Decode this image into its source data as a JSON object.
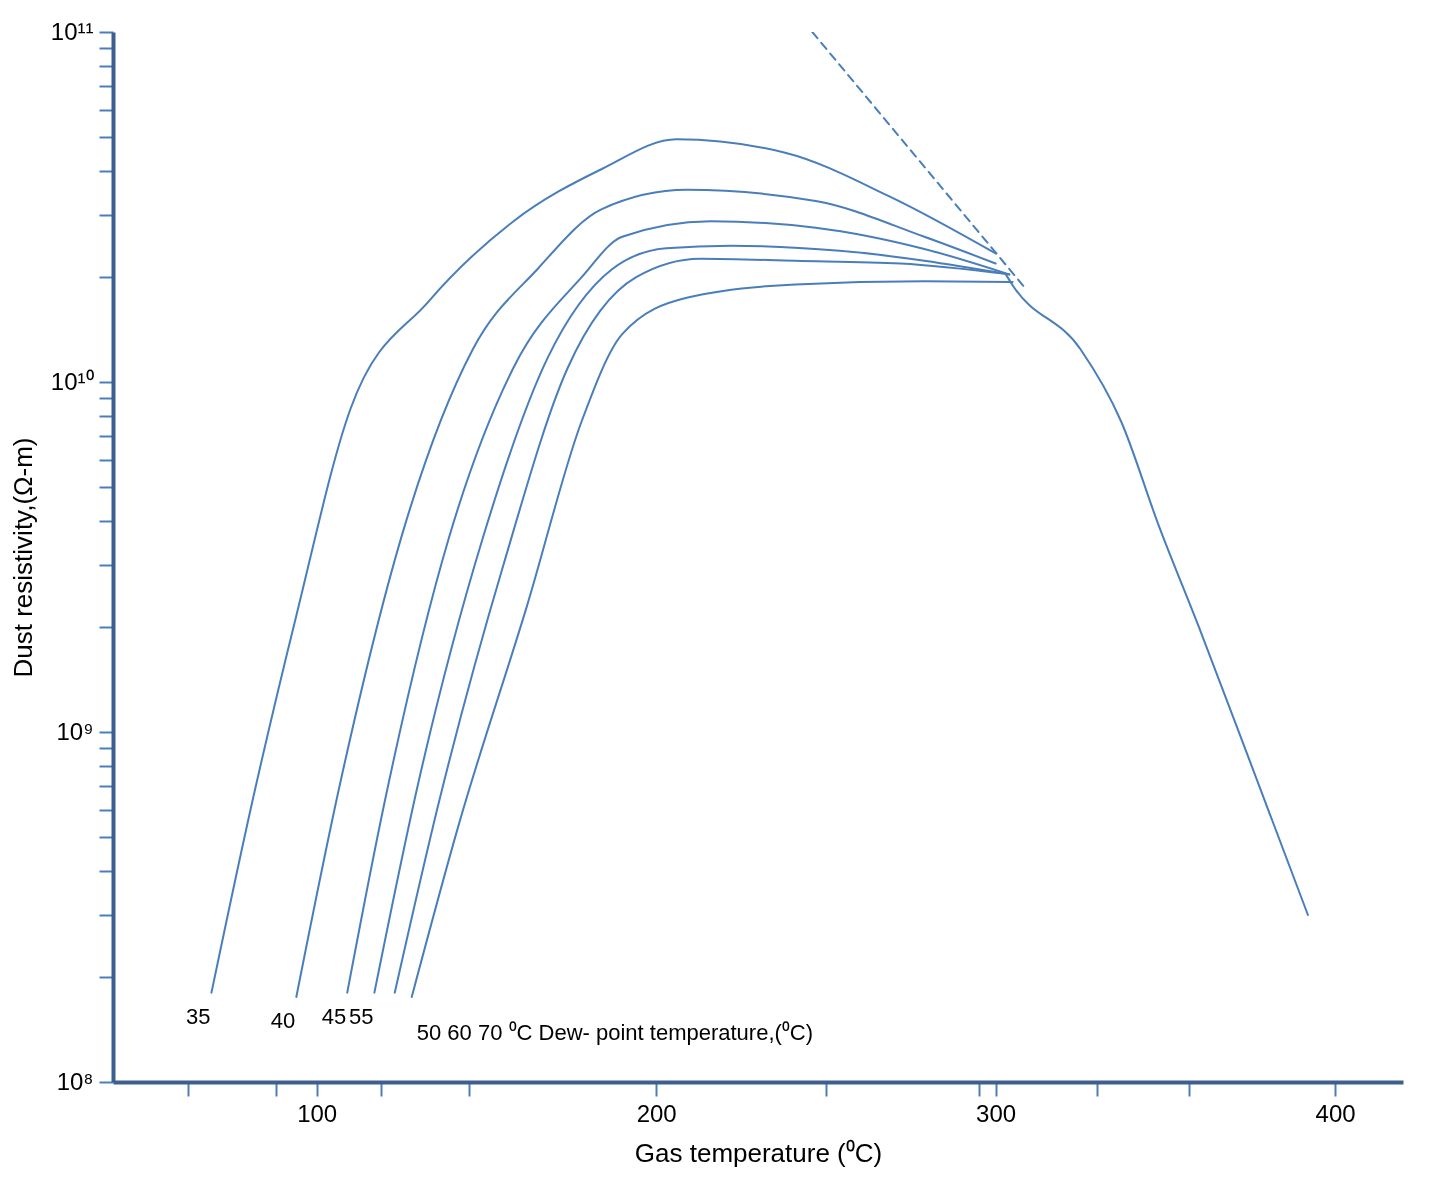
{
  "chart_data": {
    "type": "line",
    "xlabel": "Gas temperature (⁰C)",
    "ylabel": "Dust resistivity,(Ω-m)",
    "log": true,
    "grid": false,
    "marker": "none",
    "xlim": [
      40,
      420
    ],
    "xticks": [
      {
        "value": 62,
        "label": null
      },
      {
        "value": 88,
        "label": null
      },
      100,
      {
        "value": 119,
        "label": null
      },
      {
        "value": 145,
        "label": null
      },
      200,
      {
        "value": 250,
        "label": null
      },
      {
        "value": 295,
        "label": null
      },
      300,
      {
        "value": 330,
        "label": null
      },
      {
        "value": 357,
        "label": null
      },
      400
    ],
    "ylim": [
      100000000.0,
      100000000000.0
    ],
    "yticks": [
      {
        "value": 100000000.0,
        "label": "10⁸"
      },
      {
        "value": 200000000.0,
        "label": null
      },
      {
        "value": 300000000.0,
        "label": null
      },
      {
        "value": 400000000.0,
        "label": null
      },
      {
        "value": 500000000.0,
        "label": null
      },
      {
        "value": 600000000.0,
        "label": null
      },
      {
        "value": 700000000.0,
        "label": null
      },
      {
        "value": 800000000.0,
        "label": null
      },
      {
        "value": 900000000.0,
        "label": null
      },
      {
        "value": 1000000000.0,
        "label": "10⁹"
      },
      {
        "value": 2000000000.0,
        "label": null
      },
      {
        "value": 3000000000.0,
        "label": null
      },
      {
        "value": 4000000000.0,
        "label": null
      },
      {
        "value": 5000000000.0,
        "label": null
      },
      {
        "value": 6000000000.0,
        "label": null
      },
      {
        "value": 7000000000.0,
        "label": null
      },
      {
        "value": 8000000000.0,
        "label": null
      },
      {
        "value": 9000000000.0,
        "label": null
      },
      {
        "value": 10000000000.0,
        "label": "10¹⁰"
      },
      {
        "value": 20000000000.0,
        "label": null
      },
      {
        "value": 30000000000.0,
        "label": null
      },
      {
        "value": 40000000000.0,
        "label": null
      },
      {
        "value": 50000000000.0,
        "label": null
      },
      {
        "value": 60000000000.0,
        "label": null
      },
      {
        "value": 70000000000.0,
        "label": null
      },
      {
        "value": 80000000000.0,
        "label": null
      },
      {
        "value": 90000000000.0,
        "label": null
      },
      {
        "value": 100000000000.0,
        "label": "10¹¹"
      }
    ],
    "series": [
      {
        "color": "#4a7ebb",
        "x": [
          69,
          81,
          94,
          110,
          133,
          158,
          184,
          206,
          238,
          269,
          300
        ],
        "values": [
          180000000.0,
          630000000.0,
          2150000000.0,
          8400000000.0,
          17000000000.0,
          28800000000.0,
          40600000000.0,
          49400000000.0,
          45200000000.0,
          33800000000.0,
          23300000000.0
        ]
      },
      {
        "color": "#4a7ebb",
        "x": [
          94,
          107,
          126,
          146,
          165,
          184,
          209,
          247,
          279,
          300
        ],
        "values": [
          175000000.0,
          720000000.0,
          3900000000.0,
          12400000000.0,
          21000000000.0,
          31200000000.0,
          35400000000.0,
          32900000000.0,
          26000000000.0,
          21800000000.0
        ]
      },
      {
        "color": "#4a7ebb",
        "x": [
          109,
          120,
          139,
          158,
          178,
          190,
          216,
          247,
          279,
          304
        ],
        "values": [
          180000000.0,
          630000000.0,
          3600000000.0,
          11000000000.0,
          19900000000.0,
          26000000000.0,
          28800000000.0,
          27600000000.0,
          24000000000.0,
          20300000000.0
        ]
      },
      {
        "color": "#4a7ebb",
        "x": [
          117,
          130,
          149,
          168,
          187,
          203,
          222,
          254,
          304
        ],
        "values": [
          180000000.0,
          720000000.0,
          3600000000.0,
          11700000000.0,
          21000000000.0,
          24100000000.0,
          24500000000.0,
          23700000000.0,
          20300000000.0
        ]
      },
      {
        "color": "#4a7ebb",
        "x": [
          123,
          136,
          155,
          174,
          194,
          213,
          241,
          272,
          304
        ],
        "values": [
          180000000.0,
          630000000.0,
          3000000000.0,
          11000000000.0,
          19900000000.0,
          22500000000.0,
          22200000000.0,
          21800000000.0,
          20300000000.0
        ]
      },
      {
        "color": "#4a7ebb",
        "x": [
          128,
          142,
          162,
          178,
          190,
          209,
          241,
          279,
          305
        ],
        "values": [
          175000000.0,
          550000000.0,
          2300000000.0,
          7700000000.0,
          13700000000.0,
          17400000000.0,
          19000000000.0,
          19400000000.0,
          19300000000.0
        ]
      },
      {
        "color": "#4a7ebb",
        "x": [
          303,
          305,
          325,
          337,
          348,
          360,
          375,
          392
        ],
        "values": [
          20300000000.0,
          18900000000.0,
          12400000000.0,
          7700000000.0,
          3900000000.0,
          1980000000.0,
          820000000.0,
          300000000.0
        ]
      },
      {
        "color": "#4a7ebb",
        "line_style": "dashed",
        "x": [
          246,
          309
        ],
        "values": [
          100000000000.0,
          18400000000.0
        ]
      }
    ],
    "annotations": [
      "35",
      "40",
      "45",
      "55",
      "50 60 70 ⁰C  Dew- point temperature,(⁰C)"
    ]
  }
}
